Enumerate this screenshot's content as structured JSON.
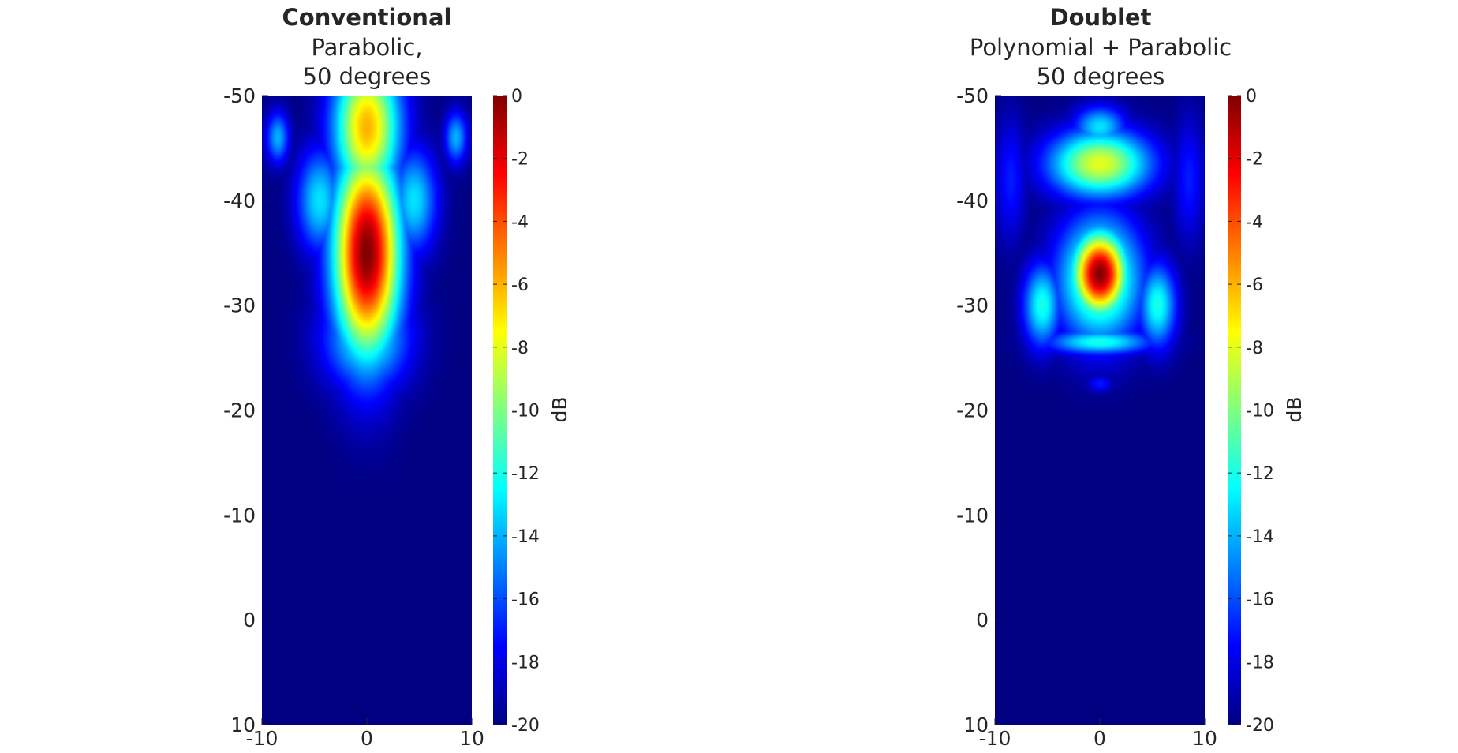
{
  "chart_data": [
    {
      "type": "heatmap",
      "title": "Conventional",
      "subtitle_lines": [
        "Parabolic,",
        "50 degrees"
      ],
      "xlabel": "",
      "ylabel": "",
      "xlim": [
        -10,
        10
      ],
      "ylim": [
        -50,
        10
      ],
      "y_reversed": true,
      "x_ticks": [
        "-10",
        "0",
        "10"
      ],
      "y_ticks": [
        "-50",
        "-40",
        "-30",
        "-20",
        "-10",
        "0",
        "10"
      ],
      "colorbar": {
        "label": "dB",
        "range": [
          -20,
          0
        ],
        "ticks": [
          "0",
          "-2",
          "-4",
          "-6",
          "-8",
          "-10",
          "-12",
          "-14",
          "-16",
          "-18",
          "-20"
        ],
        "colormap": "jet"
      },
      "background_db": -20,
      "features": [
        {
          "kind": "main-lobe",
          "x": 0,
          "y": -35,
          "peak_db": 0,
          "x_extent": 3.2,
          "y_extent": 10
        },
        {
          "kind": "upper-column",
          "x": 0,
          "y": -47,
          "peak_db": -6,
          "x_extent": 3.2,
          "y_extent": 7
        },
        {
          "kind": "shoulder",
          "x": -4.5,
          "y": -40,
          "peak_db": -13,
          "x_extent": 2.2,
          "y_extent": 5
        },
        {
          "kind": "shoulder",
          "x": 4.5,
          "y": -40,
          "peak_db": -13,
          "x_extent": 2.2,
          "y_extent": 5
        },
        {
          "kind": "tail",
          "x": 0,
          "y": -27,
          "peak_db": -12,
          "x_extent": 4,
          "y_extent": 5
        },
        {
          "kind": "tail",
          "x": 0,
          "y": -24.5,
          "peak_db": -15,
          "x_extent": 2.5,
          "y_extent": 1.5
        },
        {
          "kind": "side-spot",
          "x": -8.5,
          "y": -46,
          "peak_db": -14,
          "x_extent": 1.1,
          "y_extent": 2.5
        },
        {
          "kind": "side-spot",
          "x": 8.5,
          "y": -46,
          "peak_db": -14,
          "x_extent": 1.1,
          "y_extent": 2.5
        }
      ]
    },
    {
      "type": "heatmap",
      "title": "Doublet",
      "subtitle_lines": [
        "Polynomial + Parabolic",
        "50 degrees"
      ],
      "xlabel": "",
      "ylabel": "",
      "xlim": [
        -10,
        10
      ],
      "ylim": [
        -50,
        10
      ],
      "y_reversed": true,
      "x_ticks": [
        "-10",
        "0",
        "10"
      ],
      "y_ticks": [
        "-50",
        "-40",
        "-30",
        "-20",
        "-10",
        "0",
        "10"
      ],
      "colorbar": {
        "label": "dB",
        "range": [
          -20,
          0
        ],
        "ticks": [
          "0",
          "-2",
          "-4",
          "-6",
          "-8",
          "-10",
          "-12",
          "-14",
          "-16",
          "-18",
          "-20"
        ],
        "colormap": "jet"
      },
      "background_db": -20,
      "features": [
        {
          "kind": "main-lobe",
          "x": 0,
          "y": -33,
          "peak_db": 0,
          "x_extent": 2.6,
          "y_extent": 4
        },
        {
          "kind": "inner-ring",
          "x": 0,
          "y": -32.5,
          "peak_db": -9,
          "x_extent": 4,
          "y_extent": 6
        },
        {
          "kind": "upper-lobe",
          "x": 0,
          "y": -43.5,
          "peak_db": -8,
          "x_extent": 4.8,
          "y_extent": 3.2
        },
        {
          "kind": "upper-lobe-top",
          "x": 0,
          "y": -47,
          "peak_db": -13,
          "x_extent": 2.5,
          "y_extent": 2
        },
        {
          "kind": "outer-arc",
          "x": -5.5,
          "y": -30,
          "peak_db": -12,
          "x_extent": 1.8,
          "y_extent": 4
        },
        {
          "kind": "outer-arc",
          "x": 5.5,
          "y": -30,
          "peak_db": -12,
          "x_extent": 1.8,
          "y_extent": 4
        },
        {
          "kind": "lower-arc",
          "x": 0,
          "y": -26.5,
          "peak_db": -12,
          "x_extent": 5,
          "y_extent": 1.2
        },
        {
          "kind": "faint-halo",
          "x": -8.5,
          "y": -42,
          "peak_db": -17,
          "x_extent": 1.5,
          "y_extent": 6
        },
        {
          "kind": "faint-halo",
          "x": 8.5,
          "y": -42,
          "peak_db": -17,
          "x_extent": 1.5,
          "y_extent": 6
        },
        {
          "kind": "faint-line",
          "x": 0,
          "y": -22.5,
          "peak_db": -17,
          "x_extent": 1.2,
          "y_extent": 0.8
        }
      ]
    }
  ]
}
